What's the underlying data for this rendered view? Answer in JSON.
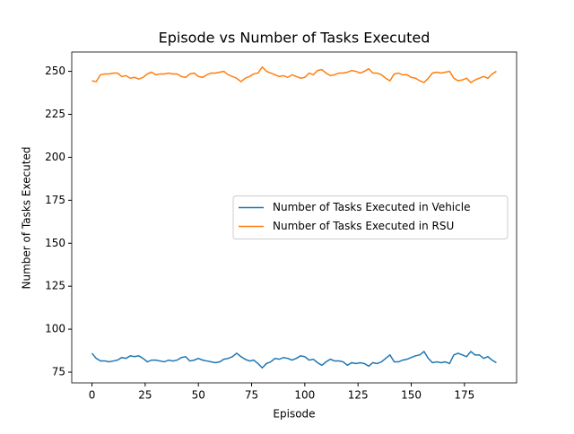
{
  "chart_data": {
    "type": "line",
    "title": "Episode vs Number of Tasks Executed",
    "xlabel": "Episode",
    "ylabel": "Number of Tasks Executed",
    "x": [
      0,
      2,
      4,
      6,
      8,
      10,
      12,
      14,
      16,
      18,
      20,
      22,
      24,
      26,
      28,
      30,
      32,
      34,
      36,
      38,
      40,
      42,
      44,
      46,
      48,
      50,
      52,
      54,
      56,
      58,
      60,
      62,
      64,
      66,
      68,
      70,
      72,
      74,
      76,
      78,
      80,
      82,
      84,
      86,
      88,
      90,
      92,
      94,
      96,
      98,
      100,
      102,
      104,
      106,
      108,
      110,
      112,
      114,
      116,
      118,
      120,
      122,
      124,
      126,
      128,
      130,
      132,
      134,
      136,
      138,
      140,
      142,
      144,
      146,
      148,
      150,
      152,
      154,
      156,
      158,
      160,
      162,
      164,
      166,
      168,
      170,
      172,
      174,
      176,
      178,
      180,
      182,
      184,
      186,
      188,
      190
    ],
    "series": [
      {
        "name": "Number of Tasks Executed in Vehicle",
        "color": "#1f77b4",
        "values": [
          86,
          83,
          81.5,
          81.5,
          81,
          81.5,
          82,
          83.5,
          83,
          84.5,
          84,
          84.5,
          83,
          81,
          82,
          82,
          81.5,
          81,
          82,
          81.5,
          82,
          83.5,
          84,
          81.5,
          82,
          83,
          82,
          81.5,
          81,
          80.5,
          81,
          82.5,
          83,
          84,
          86,
          84,
          82.5,
          81.5,
          82,
          80,
          77.5,
          80,
          81,
          83,
          82.5,
          83.5,
          83,
          82,
          83,
          84.5,
          84,
          82,
          82.5,
          80.5,
          79,
          81,
          82.5,
          81.5,
          81.5,
          81,
          79,
          80.5,
          80,
          80.5,
          80,
          78.5,
          80.5,
          80,
          81,
          83,
          85,
          81,
          81,
          82,
          82.5,
          83.5,
          84.5,
          85,
          87,
          83,
          80.5,
          81,
          80.5,
          81,
          80,
          85,
          86,
          85,
          84,
          87,
          85,
          85,
          83,
          84,
          82,
          80.5
        ]
      },
      {
        "name": "Number of Tasks Executed in RSU",
        "color": "#ff7f0e",
        "values": [
          244.5,
          244,
          248,
          248.5,
          248.5,
          249,
          249,
          247,
          247.5,
          246,
          246.5,
          245.5,
          246.5,
          248.5,
          249.5,
          248,
          248.5,
          248.5,
          249,
          248.5,
          248.5,
          247,
          246.5,
          248.5,
          249,
          247,
          246.5,
          248,
          249,
          249,
          249.5,
          250,
          248,
          247,
          246,
          244,
          246,
          247,
          248.5,
          249,
          252.5,
          250,
          249,
          248,
          247,
          247.5,
          246.5,
          248,
          247,
          246,
          246.5,
          249,
          248,
          250.5,
          251,
          249,
          247.5,
          248,
          249,
          249,
          249.5,
          250.5,
          250,
          249,
          250,
          251.5,
          249,
          249,
          248,
          246,
          244.5,
          248.5,
          249,
          248,
          248,
          246.5,
          246,
          244.5,
          243.5,
          246,
          249,
          249.5,
          249,
          249.5,
          250,
          246,
          244.5,
          245,
          246,
          243.5,
          245,
          246,
          247,
          246,
          248.5,
          250
        ]
      }
    ],
    "xlim": [
      -9.5,
      199.5
    ],
    "xticks": [
      0,
      25,
      50,
      75,
      100,
      125,
      150,
      175
    ],
    "ylim": [
      68.75,
      261.25
    ],
    "yticks": [
      75,
      100,
      125,
      150,
      175,
      200,
      225,
      250
    ],
    "legend": "center right"
  }
}
